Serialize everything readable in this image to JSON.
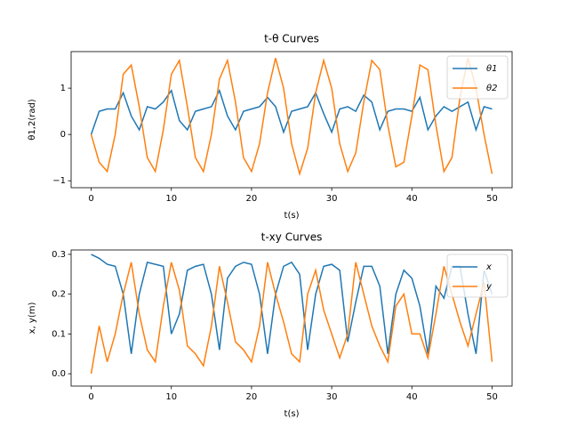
{
  "chart_data": [
    {
      "type": "line",
      "title": "t-θ Curves",
      "xlabel": "t(s)",
      "ylabel": "θ1,2(rad)",
      "x": [
        0,
        1,
        2,
        3,
        4,
        5,
        6,
        7,
        8,
        9,
        10,
        11,
        12,
        13,
        14,
        15,
        16,
        17,
        18,
        19,
        20,
        21,
        22,
        23,
        24,
        25,
        26,
        27,
        28,
        29,
        30,
        31,
        32,
        33,
        34,
        35,
        36,
        37,
        38,
        39,
        40,
        41,
        42,
        43,
        44,
        45,
        46,
        47,
        48,
        49,
        50
      ],
      "xlim": [
        -2.5,
        52.5
      ],
      "xticks": [
        0,
        10,
        20,
        30,
        40,
        50
      ],
      "ylim": [
        -1.15,
        1.79
      ],
      "yticks": [
        {
          "value": -1,
          "label": "−1"
        },
        0,
        1
      ],
      "legend": "upper right",
      "series": [
        {
          "name": "θ1",
          "color": "#1f77b4",
          "values": [
            0,
            0.5,
            0.55,
            0.55,
            0.9,
            0.4,
            0.1,
            0.6,
            0.55,
            0.7,
            0.95,
            0.3,
            0.1,
            0.5,
            0.55,
            0.6,
            0.95,
            0.4,
            0.1,
            0.5,
            0.55,
            0.6,
            0.8,
            0.6,
            0.05,
            0.5,
            0.55,
            0.6,
            0.9,
            0.45,
            0.05,
            0.55,
            0.6,
            0.5,
            0.85,
            0.7,
            0.1,
            0.5,
            0.55,
            0.55,
            0.5,
            0.8,
            0.1,
            0.4,
            0.6,
            0.5,
            0.6,
            0.7,
            0.1,
            0.6,
            0.55
          ]
        },
        {
          "name": "θ2",
          "color": "#ff7f0e",
          "values": [
            0,
            -0.6,
            -0.8,
            0,
            1.3,
            1.5,
            0.6,
            -0.5,
            -0.8,
            0.1,
            1.3,
            1.6,
            0.6,
            -0.5,
            -0.8,
            0,
            1.2,
            1.6,
            0.7,
            -0.5,
            -0.8,
            -0.2,
            0.9,
            1.65,
            1.0,
            -0.2,
            -0.85,
            -0.3,
            0.9,
            1.6,
            1.0,
            -0.2,
            -0.8,
            -0.4,
            0.7,
            1.6,
            1.4,
            0.2,
            -0.7,
            -0.6,
            0.4,
            1.5,
            1.4,
            0.2,
            -0.8,
            -0.5,
            0.8,
            1.65,
            1.0,
            0,
            -0.85
          ]
        }
      ]
    },
    {
      "type": "line",
      "title": "t-xy Curves",
      "xlabel": "t(s)",
      "ylabel": "x, y(m)",
      "x": [
        0,
        1,
        2,
        3,
        4,
        5,
        6,
        7,
        8,
        9,
        10,
        11,
        12,
        13,
        14,
        15,
        16,
        17,
        18,
        19,
        20,
        21,
        22,
        23,
        24,
        25,
        26,
        27,
        28,
        29,
        30,
        31,
        32,
        33,
        34,
        35,
        36,
        37,
        38,
        39,
        40,
        41,
        42,
        43,
        44,
        45,
        46,
        47,
        48,
        49,
        50
      ],
      "xlim": [
        -2.5,
        52.5
      ],
      "xticks": [
        0,
        10,
        20,
        30,
        40,
        50
      ],
      "ylim": [
        -0.031,
        0.311
      ],
      "yticks": [
        {
          "value": 0,
          "label": "0.0"
        },
        0.1,
        0.2,
        0.3
      ],
      "legend": "upper right",
      "series": [
        {
          "name": "x",
          "color": "#1f77b4",
          "values": [
            0.3,
            0.29,
            0.275,
            0.27,
            0.2,
            0.05,
            0.2,
            0.28,
            0.275,
            0.27,
            0.1,
            0.15,
            0.26,
            0.27,
            0.275,
            0.2,
            0.06,
            0.24,
            0.27,
            0.28,
            0.275,
            0.2,
            0.05,
            0.2,
            0.27,
            0.28,
            0.25,
            0.06,
            0.2,
            0.27,
            0.275,
            0.26,
            0.08,
            0.18,
            0.27,
            0.27,
            0.22,
            0.05,
            0.2,
            0.26,
            0.24,
            0.17,
            0.05,
            0.22,
            0.19,
            0.27,
            0.27,
            0.15,
            0.05,
            0.26,
            0.2
          ]
        },
        {
          "name": "y",
          "color": "#ff7f0e",
          "values": [
            0,
            0.12,
            0.03,
            0.1,
            0.2,
            0.28,
            0.15,
            0.06,
            0.03,
            0.17,
            0.28,
            0.21,
            0.07,
            0.05,
            0.02,
            0.12,
            0.27,
            0.18,
            0.08,
            0.06,
            0.03,
            0.12,
            0.28,
            0.2,
            0.13,
            0.05,
            0.03,
            0.2,
            0.26,
            0.16,
            0.1,
            0.04,
            0.1,
            0.28,
            0.2,
            0.12,
            0.07,
            0.03,
            0.17,
            0.2,
            0.1,
            0.1,
            0.04,
            0.15,
            0.27,
            0.2,
            0.13,
            0.07,
            0.15,
            0.23,
            0.03
          ]
        }
      ]
    }
  ]
}
